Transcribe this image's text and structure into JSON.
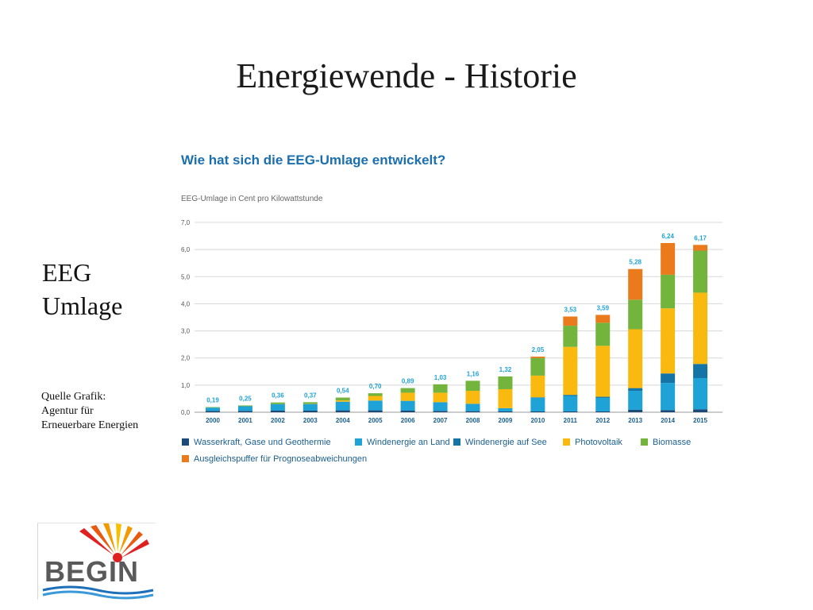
{
  "slide": {
    "title": "Energiewende - Historie",
    "side_heading": [
      "EEG",
      "Umlage"
    ],
    "source_lines": [
      "Quelle Grafik:",
      "Agentur für",
      "Erneuerbare Energien"
    ],
    "logo_text": "BEGIN"
  },
  "chart_data": {
    "type": "bar",
    "stacked": true,
    "title": "Wie hat sich die EEG-Umlage entwickelt?",
    "ylabel": "EEG-Umlage in Cent pro Kilowattstunde",
    "ylim": [
      0,
      7
    ],
    "yticks": [
      "0,0",
      "1,0",
      "2,0",
      "3,0",
      "4,0",
      "5,0",
      "6,0",
      "7,0"
    ],
    "grid": true,
    "legend_position": "bottom",
    "categories": [
      "2000",
      "2001",
      "2002",
      "2003",
      "2004",
      "2005",
      "2006",
      "2007",
      "2008",
      "2009",
      "2010",
      "2011",
      "2012",
      "2013",
      "2014",
      "2015"
    ],
    "totals_labels": [
      "0,19",
      "0,25",
      "0,36",
      "0,37",
      "0,54",
      "0,70",
      "0,89",
      "1,03",
      "1,16",
      "1,32",
      "2,05",
      "3,53",
      "3,59",
      "5,28",
      "6,24",
      "6,17"
    ],
    "series": [
      {
        "name": "Wasserkraft, Gase und Geothermie",
        "color": "#1a4a7a",
        "values": [
          0.05,
          0.05,
          0.06,
          0.06,
          0.07,
          0.07,
          0.06,
          0.05,
          0.04,
          0.03,
          0.03,
          0.03,
          0.03,
          0.09,
          0.08,
          0.11
        ]
      },
      {
        "name": "Windenergie an Land",
        "color": "#1fa3d6",
        "values": [
          0.12,
          0.17,
          0.24,
          0.25,
          0.32,
          0.36,
          0.36,
          0.32,
          0.27,
          0.12,
          0.5,
          0.57,
          0.5,
          0.7,
          1.0,
          1.15
        ]
      },
      {
        "name": "Windenergie auf See",
        "color": "#1474a6",
        "values": [
          0,
          0,
          0,
          0,
          0,
          0,
          0,
          0,
          0,
          0,
          0.02,
          0.04,
          0.04,
          0.1,
          0.35,
          0.52
        ]
      },
      {
        "name": "Photovoltaik",
        "color": "#f9b90f",
        "values": [
          0,
          0,
          0,
          0.01,
          0.05,
          0.17,
          0.3,
          0.35,
          0.48,
          0.7,
          0.8,
          1.77,
          1.88,
          2.17,
          2.4,
          2.63
        ]
      },
      {
        "name": "Biomasse",
        "color": "#72b43c",
        "values": [
          0.02,
          0.03,
          0.06,
          0.05,
          0.1,
          0.1,
          0.17,
          0.31,
          0.37,
          0.47,
          0.65,
          0.78,
          0.85,
          1.09,
          1.24,
          1.55
        ]
      },
      {
        "name": "Ausgleichspuffer für Prognoseabweichungen",
        "color": "#ea7a1c",
        "values": [
          0,
          0,
          0,
          0,
          0,
          0,
          0,
          0,
          0,
          0,
          0.05,
          0.34,
          0.29,
          1.13,
          1.17,
          0.21
        ]
      }
    ]
  }
}
